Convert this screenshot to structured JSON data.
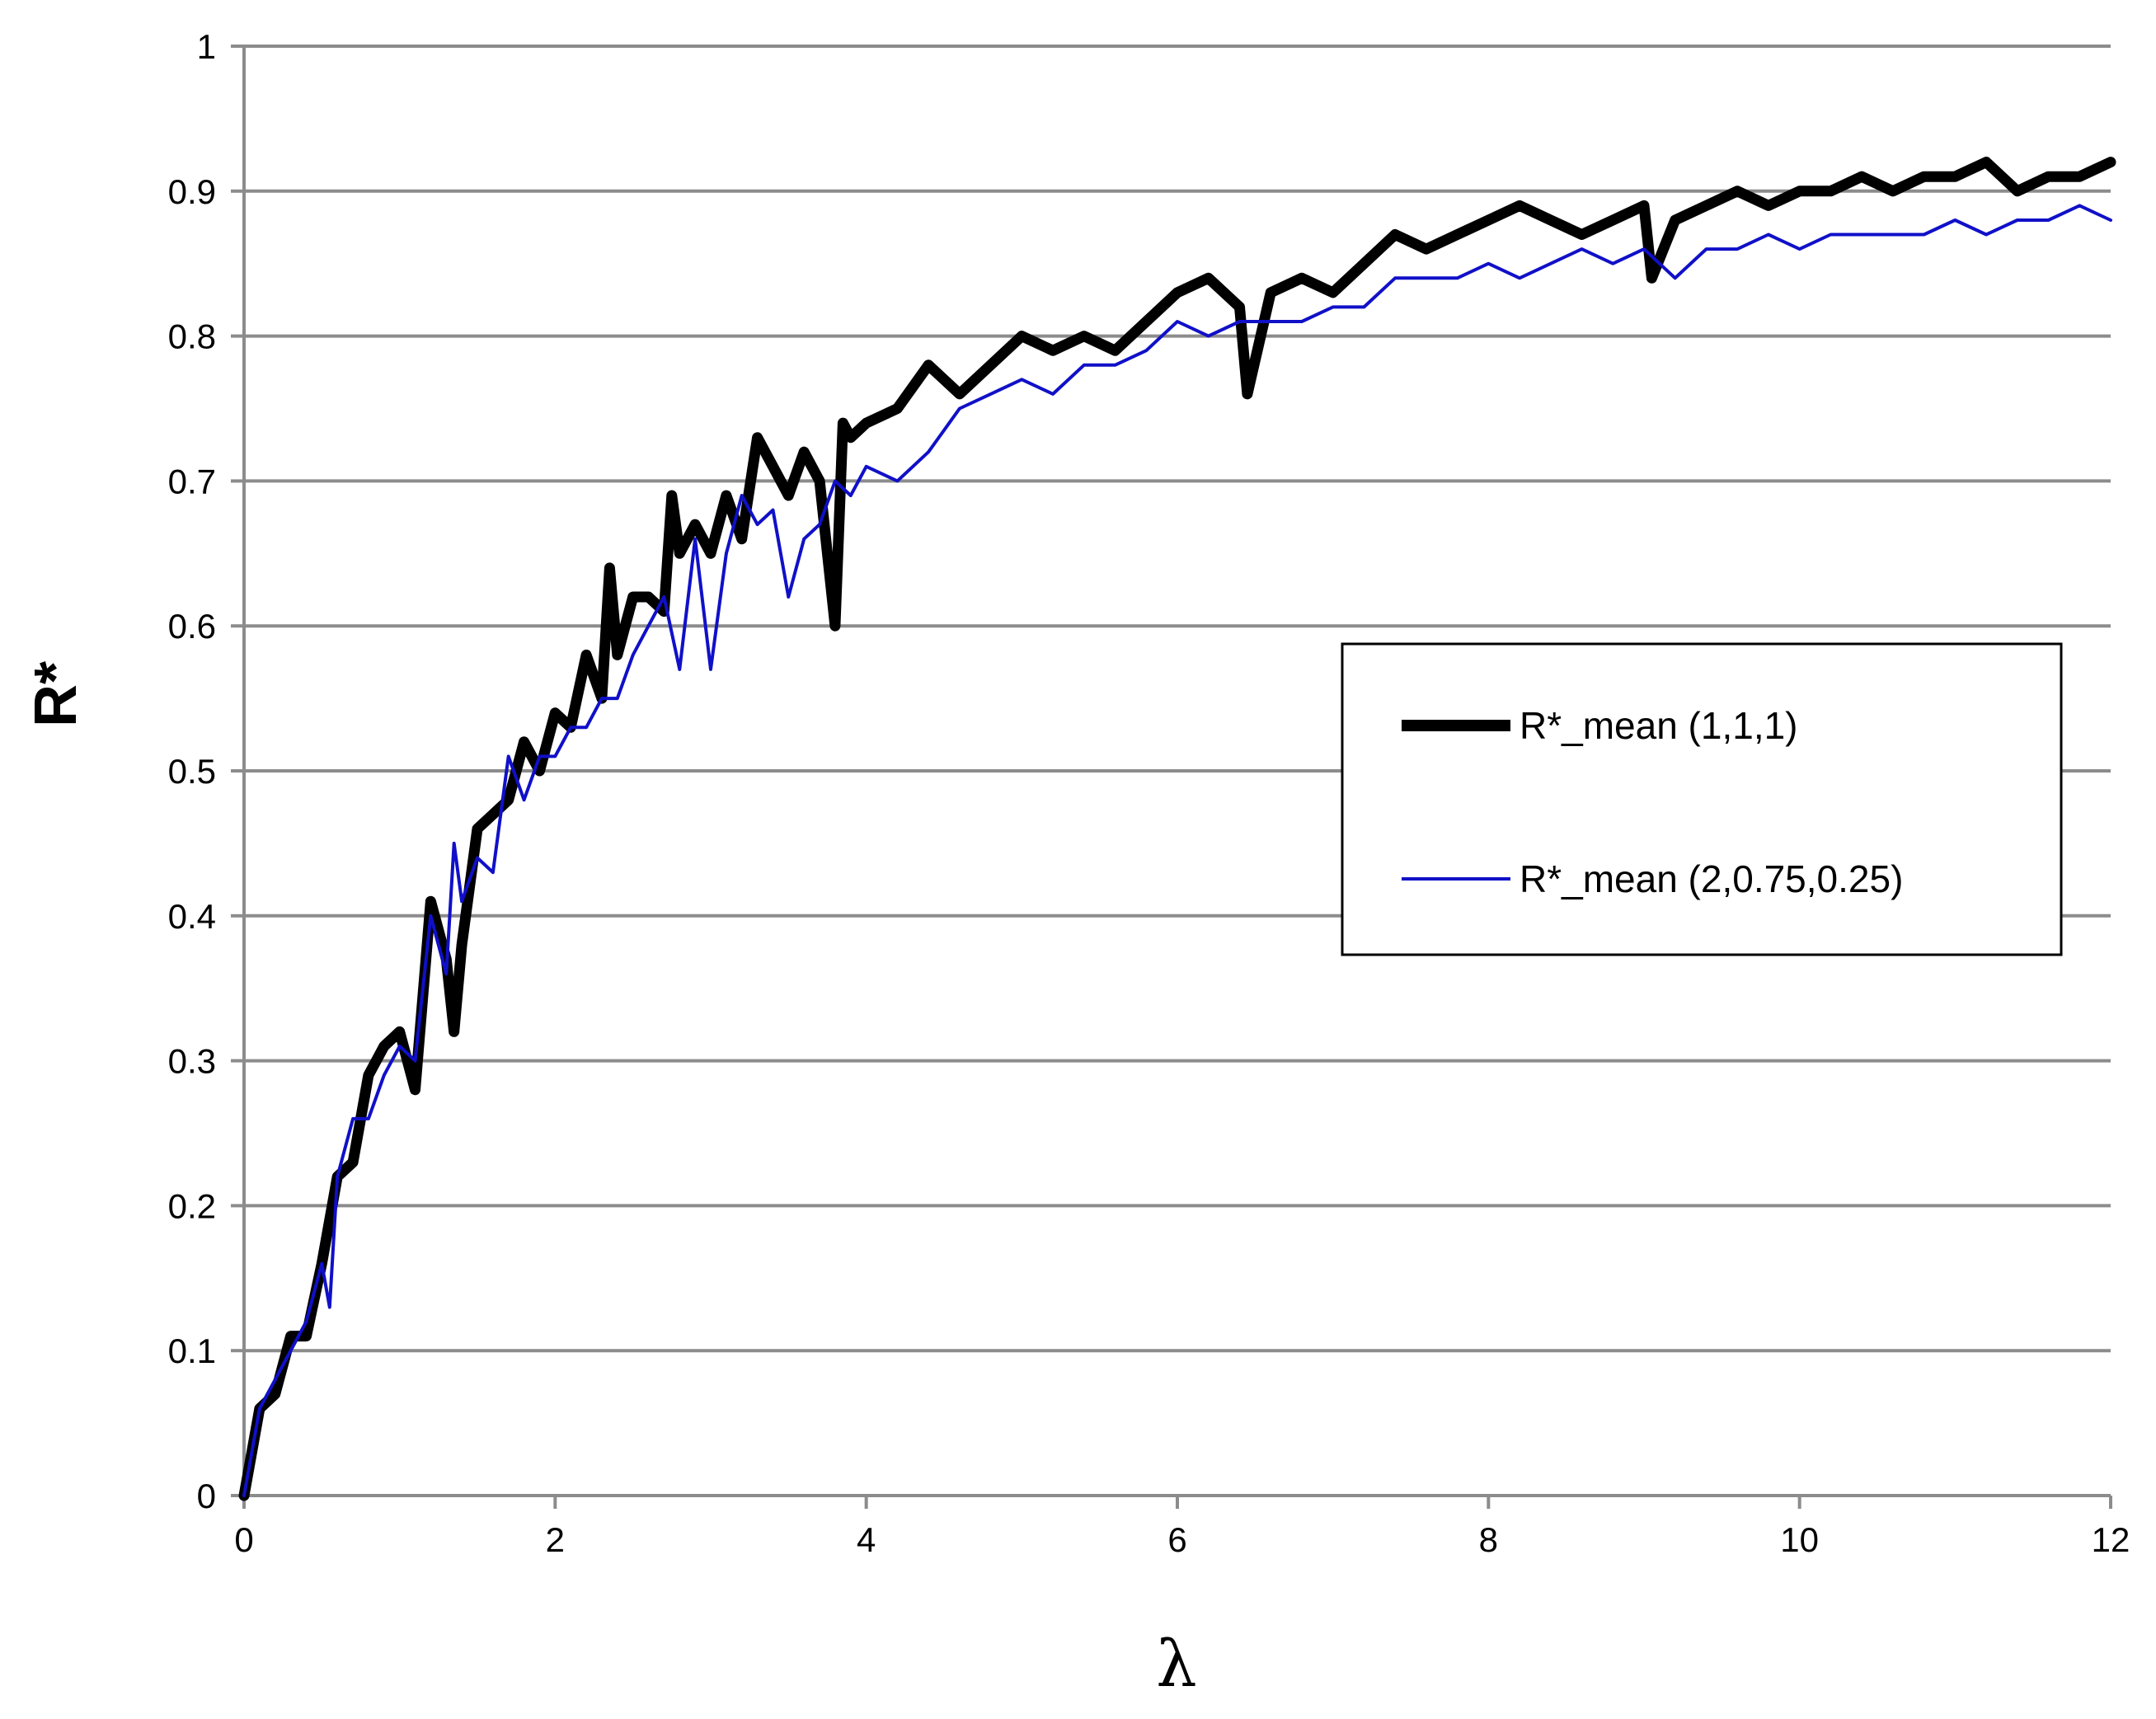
{
  "chart_data": {
    "type": "line",
    "title": "",
    "xlabel": "λ",
    "ylabel": "R*",
    "xlim": [
      0,
      12
    ],
    "ylim": [
      0,
      1
    ],
    "x_ticks": [
      "0",
      "2",
      "4",
      "6",
      "8",
      "10",
      "12"
    ],
    "y_ticks": [
      "0",
      "0.1",
      "0.2",
      "0.3",
      "0.4",
      "0.5",
      "0.6",
      "0.7",
      "0.8",
      "0.9",
      "1"
    ],
    "grid": "horizontal",
    "legend_position": "right-middle",
    "series": [
      {
        "name": "R*_mean (1,1,1)",
        "color": "#000000",
        "x": [
          0,
          0.1,
          0.2,
          0.3,
          0.4,
          0.5,
          0.6,
          0.7,
          0.8,
          0.9,
          1.0,
          1.1,
          1.2,
          1.3,
          1.35,
          1.4,
          1.5,
          1.6,
          1.7,
          1.8,
          1.9,
          2.0,
          2.1,
          2.2,
          2.3,
          2.35,
          2.4,
          2.5,
          2.6,
          2.7,
          2.75,
          2.8,
          2.9,
          3.0,
          3.1,
          3.2,
          3.3,
          3.4,
          3.5,
          3.6,
          3.7,
          3.8,
          3.85,
          3.9,
          4.0,
          4.2,
          4.4,
          4.6,
          4.8,
          5.0,
          5.2,
          5.4,
          5.6,
          5.8,
          6.0,
          6.2,
          6.4,
          6.45,
          6.6,
          6.8,
          7.0,
          7.2,
          7.4,
          7.6,
          7.8,
          8.0,
          8.2,
          8.4,
          8.6,
          8.8,
          9.0,
          9.05,
          9.2,
          9.4,
          9.6,
          9.8,
          10.0,
          10.2,
          10.4,
          10.6,
          10.8,
          11.0,
          11.2,
          11.4,
          11.6,
          11.8,
          12.0
        ],
        "y": [
          0,
          0.06,
          0.07,
          0.11,
          0.11,
          0.16,
          0.22,
          0.23,
          0.29,
          0.31,
          0.32,
          0.28,
          0.41,
          0.37,
          0.32,
          0.38,
          0.46,
          0.47,
          0.48,
          0.52,
          0.5,
          0.54,
          0.53,
          0.58,
          0.55,
          0.64,
          0.58,
          0.62,
          0.62,
          0.61,
          0.69,
          0.65,
          0.67,
          0.65,
          0.69,
          0.66,
          0.73,
          0.71,
          0.69,
          0.72,
          0.7,
          0.6,
          0.74,
          0.73,
          0.74,
          0.75,
          0.78,
          0.76,
          0.78,
          0.8,
          0.79,
          0.8,
          0.79,
          0.81,
          0.83,
          0.84,
          0.82,
          0.76,
          0.83,
          0.84,
          0.83,
          0.85,
          0.87,
          0.86,
          0.87,
          0.88,
          0.89,
          0.88,
          0.87,
          0.88,
          0.89,
          0.84,
          0.88,
          0.89,
          0.9,
          0.89,
          0.9,
          0.9,
          0.91,
          0.9,
          0.91,
          0.91,
          0.92,
          0.9,
          0.91,
          0.91,
          0.92
        ]
      },
      {
        "name": "R*_mean (2,0.75,0.25)",
        "color": "#1010c8",
        "x": [
          0,
          0.1,
          0.2,
          0.3,
          0.4,
          0.5,
          0.55,
          0.6,
          0.7,
          0.8,
          0.9,
          1.0,
          1.1,
          1.2,
          1.3,
          1.35,
          1.4,
          1.5,
          1.6,
          1.7,
          1.8,
          1.9,
          2.0,
          2.1,
          2.2,
          2.3,
          2.4,
          2.5,
          2.6,
          2.7,
          2.8,
          2.9,
          3.0,
          3.1,
          3.2,
          3.3,
          3.4,
          3.5,
          3.6,
          3.7,
          3.8,
          3.9,
          4.0,
          4.2,
          4.4,
          4.6,
          4.8,
          5.0,
          5.2,
          5.4,
          5.6,
          5.8,
          6.0,
          6.2,
          6.4,
          6.6,
          6.8,
          7.0,
          7.2,
          7.4,
          7.6,
          7.8,
          8.0,
          8.2,
          8.4,
          8.6,
          8.8,
          9.0,
          9.2,
          9.4,
          9.6,
          9.8,
          10.0,
          10.2,
          10.4,
          10.6,
          10.8,
          11.0,
          11.2,
          11.4,
          11.6,
          11.8,
          12.0
        ],
        "y": [
          0,
          0.06,
          0.08,
          0.1,
          0.12,
          0.16,
          0.13,
          0.22,
          0.26,
          0.26,
          0.29,
          0.31,
          0.3,
          0.4,
          0.36,
          0.45,
          0.41,
          0.44,
          0.43,
          0.51,
          0.48,
          0.51,
          0.51,
          0.53,
          0.53,
          0.55,
          0.55,
          0.58,
          0.6,
          0.62,
          0.57,
          0.66,
          0.57,
          0.65,
          0.69,
          0.67,
          0.68,
          0.62,
          0.66,
          0.67,
          0.7,
          0.69,
          0.71,
          0.7,
          0.72,
          0.75,
          0.76,
          0.77,
          0.76,
          0.78,
          0.78,
          0.79,
          0.81,
          0.8,
          0.81,
          0.81,
          0.81,
          0.82,
          0.82,
          0.84,
          0.84,
          0.84,
          0.85,
          0.84,
          0.85,
          0.86,
          0.85,
          0.86,
          0.84,
          0.86,
          0.86,
          0.87,
          0.86,
          0.87,
          0.87,
          0.87,
          0.87,
          0.88,
          0.87,
          0.88,
          0.88,
          0.89,
          0.88
        ]
      }
    ]
  }
}
